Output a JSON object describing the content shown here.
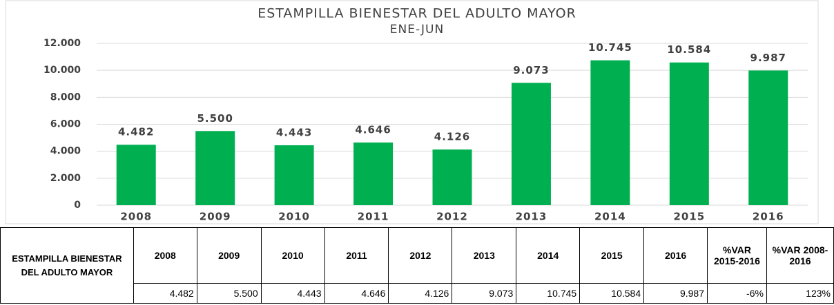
{
  "chart_data": {
    "type": "bar",
    "title": "ESTAMPILLA BIENESTAR  DEL ADULTO MAYOR",
    "subtitle": "ENE-JUN",
    "categories": [
      "2008",
      "2009",
      "2010",
      "2011",
      "2012",
      "2013",
      "2014",
      "2015",
      "2016"
    ],
    "values": [
      4482,
      5500,
      4443,
      4646,
      4126,
      9073,
      10745,
      10584,
      9987
    ],
    "value_labels": [
      "4.482",
      "5.500",
      "4.443",
      "4.646",
      "4.126",
      "9.073",
      "10.745",
      "10.584",
      "9.987"
    ],
    "color": "#00b050",
    "ylim": [
      0,
      12000
    ],
    "yticks": [
      0,
      {
        "value": 2000,
        "label": "2.000"
      },
      {
        "value": 4000,
        "label": "4.000"
      },
      {
        "value": 6000,
        "label": "6.000"
      },
      {
        "value": 8000,
        "label": "8.000"
      },
      {
        "value": 10000,
        "label": "10.000"
      },
      {
        "value": 12000,
        "label": "12.000"
      }
    ],
    "grid": true
  },
  "table": {
    "row_header": "ESTAMPILLA BIENESTAR DEL ADULTO MAYOR",
    "columns": [
      "2008",
      "2009",
      "2010",
      "2011",
      "2012",
      "2013",
      "2014",
      "2015",
      "2016",
      "%VAR 2015-2016",
      "%VAR 2008-2016"
    ],
    "row": [
      "4.482",
      "5.500",
      "4.443",
      "4.646",
      "4.126",
      "9.073",
      "10.745",
      "10.584",
      "9.987",
      "-6%",
      "123%"
    ]
  }
}
